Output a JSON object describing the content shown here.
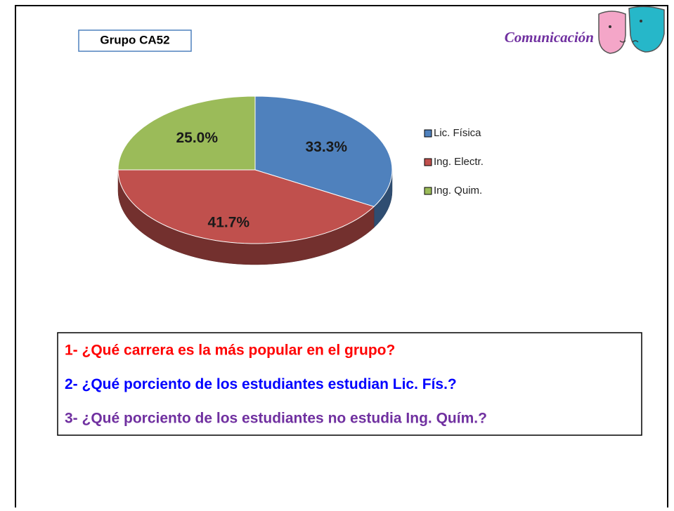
{
  "header": {
    "group": "Grupo CA52",
    "topic": "Comunicación"
  },
  "chart_data": {
    "type": "pie",
    "categories": [
      "Lic. Física",
      "Ing. Electr.",
      "Ing. Quim."
    ],
    "values": [
      33.3,
      41.7,
      25.0
    ],
    "value_labels": [
      "33.3%",
      "41.7%",
      "25.0%"
    ],
    "colors": [
      "#4f81bd",
      "#c0504d",
      "#9bbb59"
    ],
    "legend": "right"
  },
  "questions": [
    {
      "text": "1- ¿Qué carrera es la más popular en el grupo?",
      "color": "#ff0000"
    },
    {
      "text": "2- ¿Qué porciento de los estudiantes estudian Lic. Fís.?",
      "color": "#0000ff"
    },
    {
      "text": "3- ¿Qué porciento de los estudiantes no estudia Ing. Quím.?",
      "color": "#7030a0"
    }
  ]
}
